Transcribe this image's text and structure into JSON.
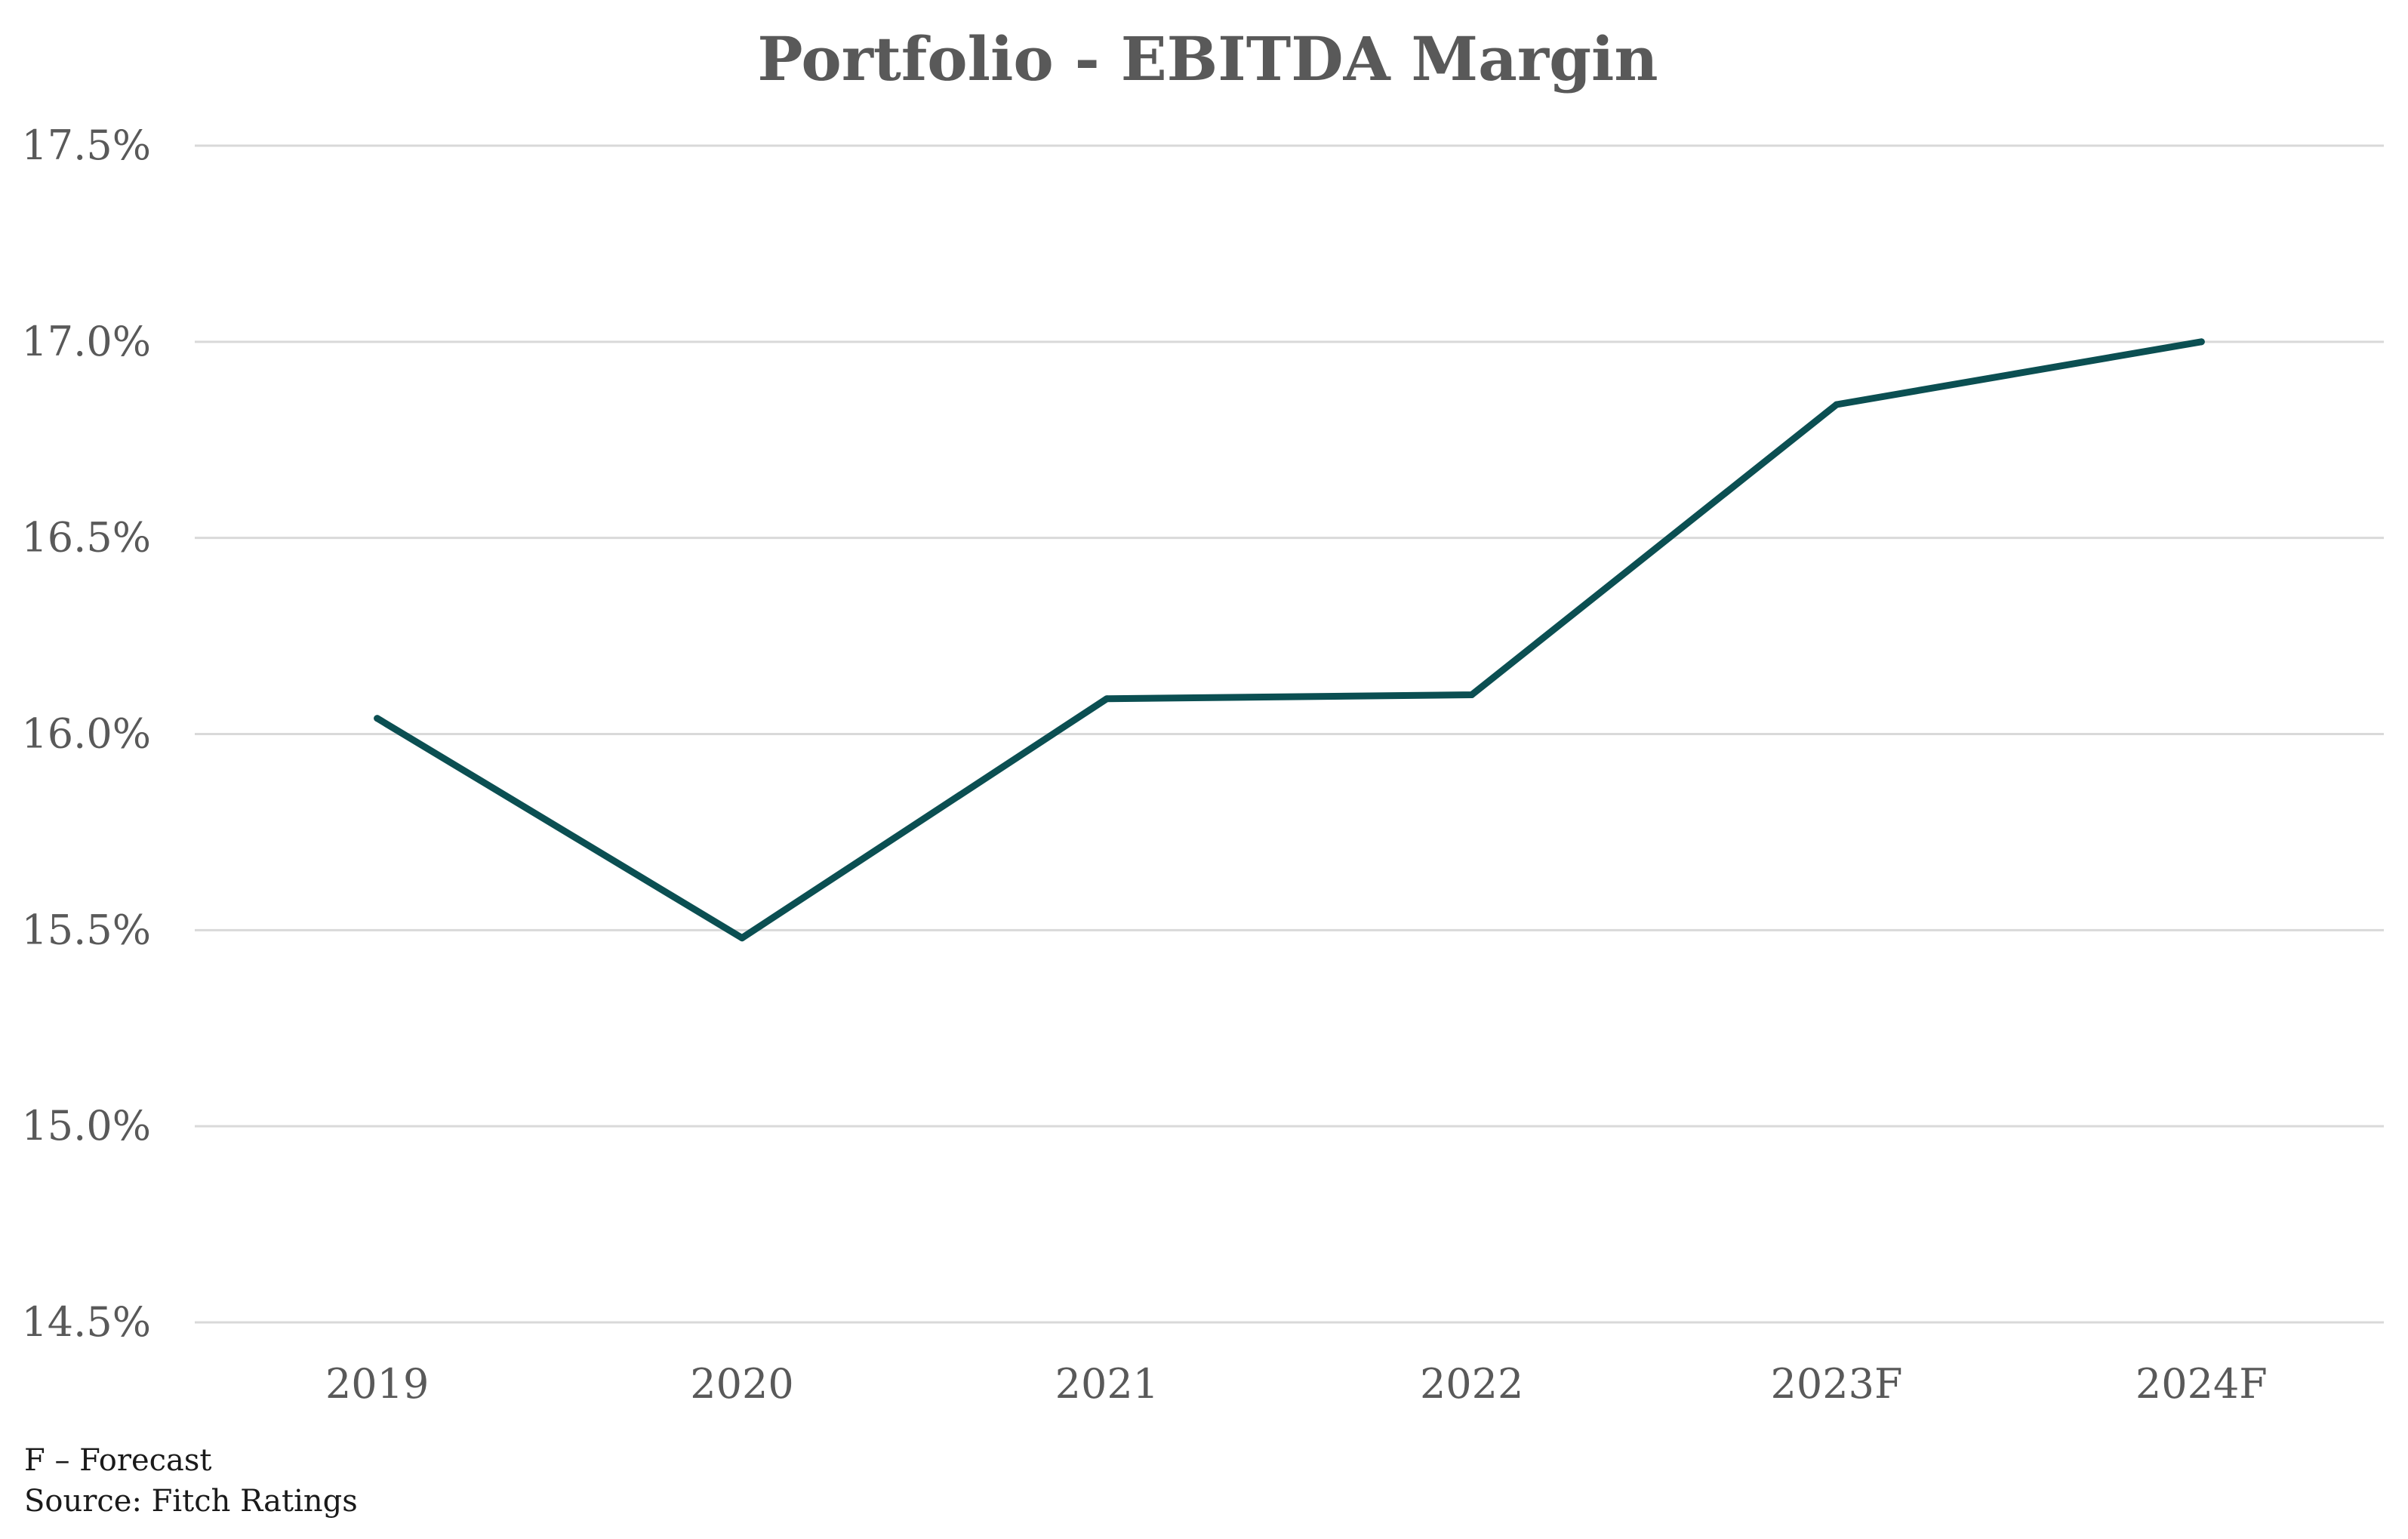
{
  "chart_data": {
    "type": "line",
    "title": "Portfolio - EBITDA Margin",
    "categories": [
      "2019",
      "2020",
      "2021",
      "2022",
      "2023F",
      "2024F"
    ],
    "series": [
      {
        "name": "EBITDA Margin",
        "values": [
          16.04,
          15.48,
          16.09,
          16.1,
          16.84,
          17.0
        ],
        "color": "#0b4f52"
      }
    ],
    "y_ticks": [
      14.5,
      15.0,
      15.5,
      16.0,
      16.5,
      17.0,
      17.5
    ],
    "y_tick_labels": [
      "14.5%",
      "15.0%",
      "15.5%",
      "16.0%",
      "16.5%",
      "17.0%",
      "17.5%"
    ],
    "ylim": [
      14.5,
      17.5
    ],
    "xlabel": "",
    "ylabel": "",
    "grid": true,
    "legend": "none"
  },
  "footnotes": {
    "forecast_note": "F – Forecast",
    "source": "Source: Fitch Ratings"
  }
}
